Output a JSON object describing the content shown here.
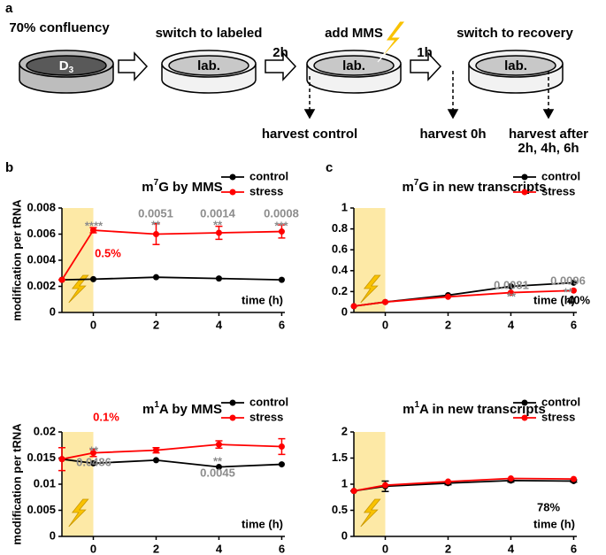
{
  "panel_labels": [
    "a",
    "b",
    "c"
  ],
  "schematic": {
    "step1": "70% confluency",
    "dish1_main": "D",
    "dish1_sub": "3",
    "step2": "switch to labeled",
    "dish2": "lab.",
    "delay1": "2h",
    "step3": "add MMS",
    "dish3": "lab.",
    "delay2": "1h",
    "step4": "switch to recovery",
    "dish4": "lab.",
    "harvest1": "harvest control",
    "harvest2": "harvest 0h",
    "harvest3_line1": "harvest after",
    "harvest3_line2": "2h, 4h, 6h"
  },
  "chart_data": [
    {
      "type": "line",
      "title": {
        "pre": "m",
        "sup": "7",
        "post": "G by MMS"
      },
      "ylabel": "modification per tRNA",
      "xlabel": "time (h)",
      "x": [
        -1,
        0,
        2,
        4,
        6
      ],
      "xlim": [
        -1,
        6.1
      ],
      "xticks": [
        0,
        2,
        4,
        6
      ],
      "ylim": [
        0,
        0.008
      ],
      "yticks": [
        0,
        0.002,
        0.004,
        0.006,
        0.008
      ],
      "highlight": [
        -1,
        0
      ],
      "series": [
        {
          "name": "control",
          "color": "#000000",
          "values": [
            0.0025,
            0.00255,
            0.0027,
            0.0026,
            0.0025
          ]
        },
        {
          "name": "stress",
          "color": "#ff0000",
          "values": [
            0.0025,
            0.0063,
            0.006,
            0.0061,
            0.0062
          ],
          "errors": [
            0,
            0.0002,
            0.0008,
            0.0005,
            0.0005
          ]
        }
      ],
      "annotations": [
        {
          "text": "****",
          "color": "#8c8c8c"
        },
        {
          "text": "0.5%",
          "color": "#ff0000"
        },
        {
          "text": "0.0051",
          "color": "#8c8c8c"
        },
        {
          "text": "**",
          "color": "#8c8c8c"
        },
        {
          "text": "0.0014",
          "color": "#8c8c8c"
        },
        {
          "text": "**",
          "color": "#8c8c8c"
        },
        {
          "text": "0.0008",
          "color": "#8c8c8c"
        },
        {
          "text": "***",
          "color": "#8c8c8c"
        }
      ]
    },
    {
      "type": "line",
      "title": {
        "pre": "m",
        "sup": "1",
        "post": "A by MMS"
      },
      "ylabel": "modification per tRNA",
      "xlabel": "time (h)",
      "x": [
        -1,
        0,
        2,
        4,
        6
      ],
      "xlim": [
        -1,
        6.1
      ],
      "xticks": [
        0,
        2,
        4,
        6
      ],
      "ylim": [
        0,
        0.02
      ],
      "yticks": [
        0,
        0.005,
        0.01,
        0.015,
        0.02
      ],
      "highlight": [
        -1,
        0
      ],
      "series": [
        {
          "name": "control",
          "color": "#000000",
          "values": [
            0.0148,
            0.014,
            0.0146,
            0.0133,
            0.0138
          ]
        },
        {
          "name": "stress",
          "color": "#ff0000",
          "values": [
            0.0148,
            0.016,
            0.0165,
            0.0176,
            0.0172
          ],
          "errors": [
            0.0022,
            0.0007,
            0.0005,
            0.0007,
            0.0015
          ]
        }
      ],
      "annotations": [
        {
          "text": "0.1%",
          "color": "#ff0000"
        },
        {
          "text": "**",
          "color": "#8c8c8c"
        },
        {
          "text": "0.0486",
          "color": "#8c8c8c"
        },
        {
          "text": "**",
          "color": "#8c8c8c"
        },
        {
          "text": "0.0045",
          "color": "#8c8c8c"
        }
      ]
    },
    {
      "type": "line",
      "title": {
        "pre": "m",
        "sup": "7",
        "post": "G in new transcripts"
      },
      "xlabel": "time (h)",
      "x": [
        -1,
        0,
        2,
        4,
        6
      ],
      "xlim": [
        -1,
        6.1
      ],
      "xticks": [
        0,
        2,
        4,
        6
      ],
      "ylim": [
        0,
        1
      ],
      "yticks": [
        0,
        0.2,
        0.4,
        0.6,
        0.8,
        1
      ],
      "highlight": [
        -1,
        0
      ],
      "series": [
        {
          "name": "control",
          "color": "#000000",
          "values": [
            0.06,
            0.1,
            0.165,
            0.25,
            0.285
          ]
        },
        {
          "name": "stress",
          "color": "#ff0000",
          "values": [
            0.06,
            0.1,
            0.15,
            0.19,
            0.21
          ]
        }
      ],
      "annotations": [
        {
          "text": "0.0081",
          "color": "#8c8c8c"
        },
        {
          "text": "**",
          "color": "#8c8c8c"
        },
        {
          "text": "0.0096",
          "color": "#8c8c8c"
        },
        {
          "text": "**",
          "color": "#8c8c8c"
        },
        {
          "text": "40%",
          "color": "#000000"
        }
      ]
    },
    {
      "type": "line",
      "title": {
        "pre": "m",
        "sup": "1",
        "post": "A in new transcripts"
      },
      "xlabel": "time (h)",
      "x": [
        -1,
        0,
        2,
        4,
        6
      ],
      "xlim": [
        -1,
        6.1
      ],
      "xticks": [
        0,
        2,
        4,
        6
      ],
      "ylim": [
        0,
        2
      ],
      "yticks": [
        0,
        0.5,
        1,
        1.5,
        2
      ],
      "highlight": [
        -1,
        0
      ],
      "series": [
        {
          "name": "control",
          "color": "#000000",
          "values": [
            0.87,
            0.96,
            1.02,
            1.07,
            1.06
          ],
          "errors": [
            0,
            0.1,
            0.03,
            0.03,
            0.02
          ]
        },
        {
          "name": "stress",
          "color": "#ff0000",
          "values": [
            0.87,
            0.98,
            1.05,
            1.11,
            1.1
          ]
        }
      ],
      "annotations": [
        {
          "text": "78%",
          "color": "#000000"
        }
      ]
    }
  ]
}
